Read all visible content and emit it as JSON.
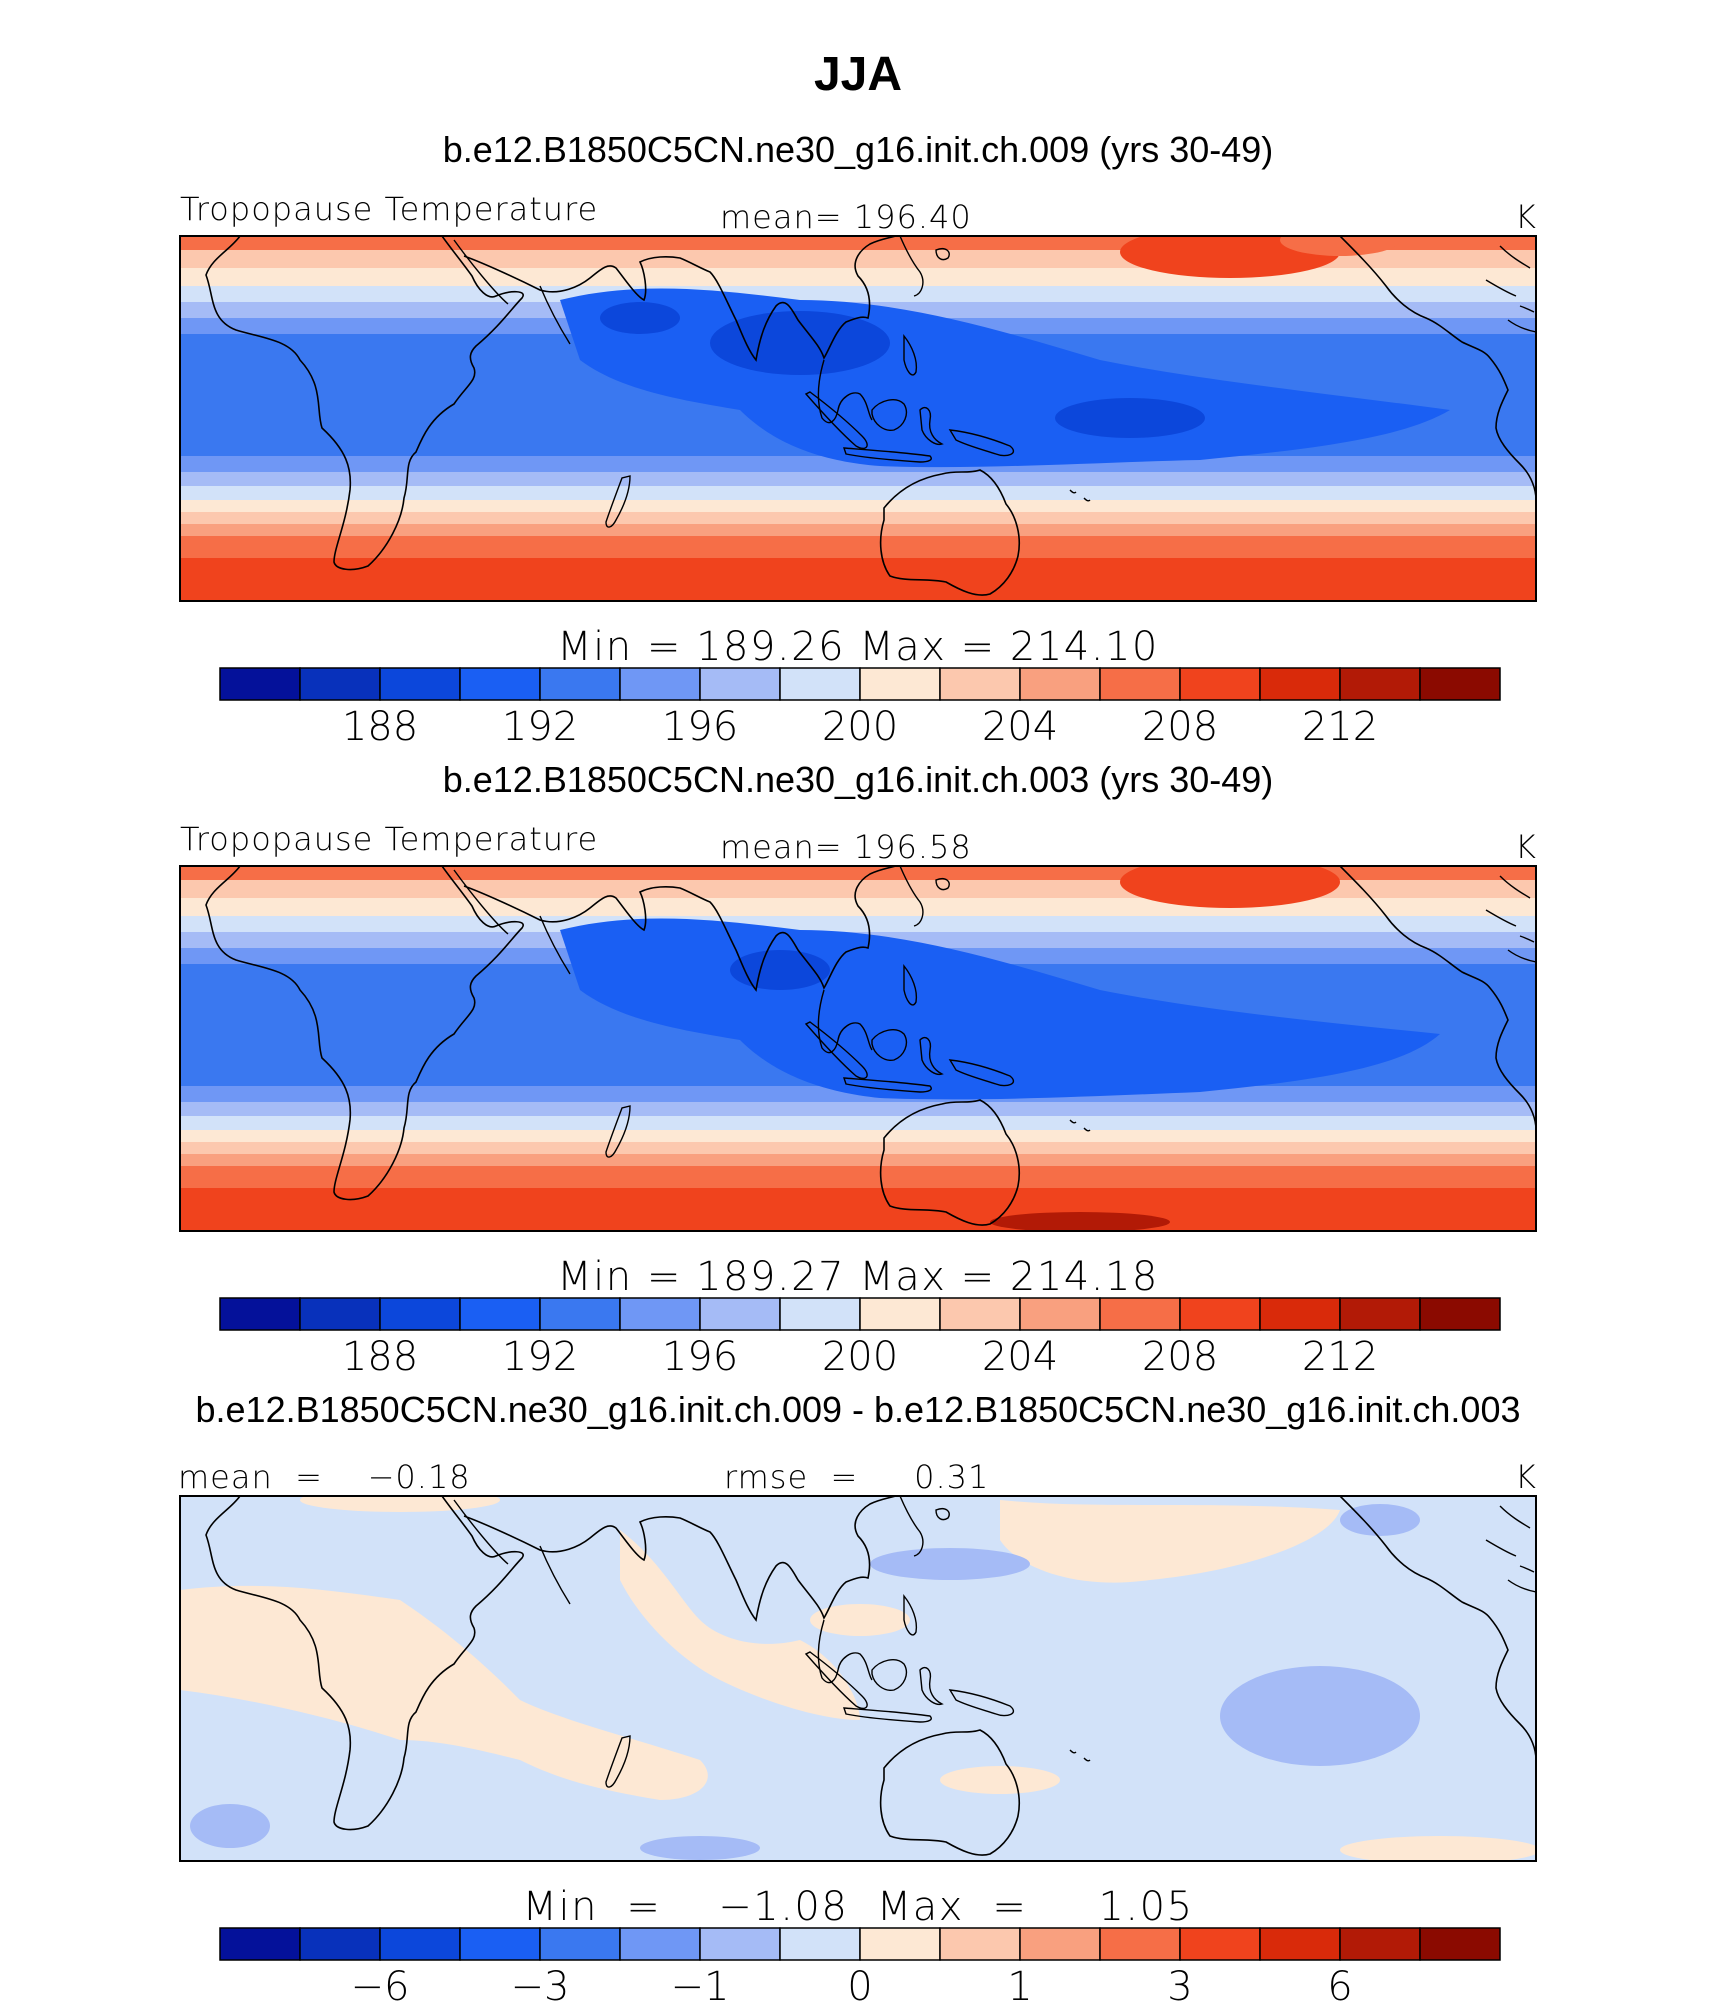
{
  "chart_data": {
    "title": "JJA",
    "panels": [
      {
        "type": "heatmap",
        "case_title": "b.e12.B1850C5CN.ne30_g16.init.ch.009 (yrs 30-49)",
        "variable": "Tropopause Temperature",
        "mean_text": "mean=  196.40",
        "units": "K",
        "minmax_text": "Min  =  189.26  Max  =  214.10",
        "min": 189.26,
        "max": 214.1,
        "mean": 196.4,
        "colorbar": {
          "colors": [
            "#04119a",
            "#0831bb",
            "#0c47db",
            "#1a5ff3",
            "#3a78f0",
            "#6f97f5",
            "#a5bbf6",
            "#d2e2f9",
            "#fde8d4",
            "#fcc8ae",
            "#f9a07f",
            "#f66e47",
            "#f0431d",
            "#d92a0a",
            "#b21a06",
            "#8b0a00"
          ],
          "tick_labels": [
            "188",
            "192",
            "196",
            "200",
            "204",
            "208",
            "212"
          ]
        }
      },
      {
        "type": "heatmap",
        "case_title": "b.e12.B1850C5CN.ne30_g16.init.ch.003 (yrs 30-49)",
        "variable": "Tropopause Temperature",
        "mean_text": "mean=  196.58",
        "units": "K",
        "minmax_text": "Min  =  189.27  Max  =  214.18",
        "min": 189.27,
        "max": 214.18,
        "mean": 196.58,
        "colorbar": {
          "colors": [
            "#04119a",
            "#0831bb",
            "#0c47db",
            "#1a5ff3",
            "#3a78f0",
            "#6f97f5",
            "#a5bbf6",
            "#d2e2f9",
            "#fde8d4",
            "#fcc8ae",
            "#f9a07f",
            "#f66e47",
            "#f0431d",
            "#d92a0a",
            "#b21a06",
            "#8b0a00"
          ],
          "tick_labels": [
            "188",
            "192",
            "196",
            "200",
            "204",
            "208",
            "212"
          ]
        }
      },
      {
        "type": "heatmap",
        "case_title": "b.e12.B1850C5CN.ne30_g16.init.ch.009 - b.e12.B1850C5CN.ne30_g16.init.ch.003",
        "variable": "",
        "mean_text": "mean  =    −0.18",
        "rmse_text": "rmse  =     0.31",
        "units": "K",
        "minmax_text": "Min  =    −1.08  Max  =     1.05",
        "min": -1.08,
        "max": 1.05,
        "mean": -0.18,
        "rmse": 0.31,
        "colorbar": {
          "colors": [
            "#04119a",
            "#0831bb",
            "#0c47db",
            "#1a5ff3",
            "#3a78f0",
            "#6f97f5",
            "#a5bbf6",
            "#d2e2f9",
            "#fde8d4",
            "#fcc8ae",
            "#f9a07f",
            "#f66e47",
            "#f0431d",
            "#d92a0a",
            "#b21a06",
            "#8b0a00"
          ],
          "tick_labels": [
            "−6",
            "−3",
            "−1",
            "0",
            "1",
            "3",
            "6"
          ]
        }
      }
    ]
  }
}
